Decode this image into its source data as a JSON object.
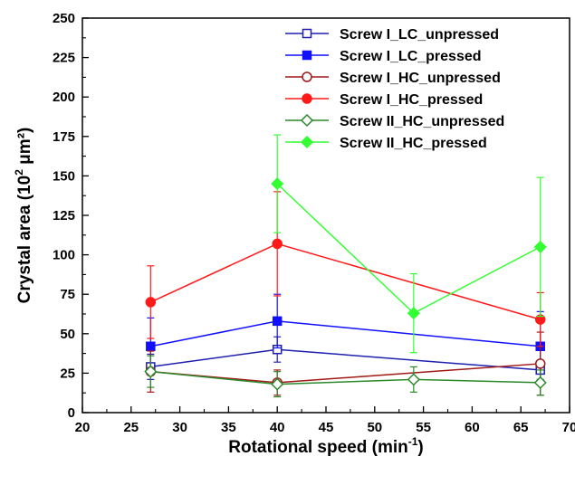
{
  "chart_data": {
    "type": "line",
    "xlabel": "Rotational speed (min",
    "xlabel_sup": "-1",
    "xlabel_close": ")",
    "ylabel": "Crystal area (10",
    "ylabel_sup": "2",
    "ylabel_unit": " μm²)",
    "xlim": [
      20,
      70
    ],
    "ylim": [
      0,
      250
    ],
    "x_ticks": [
      20,
      25,
      30,
      35,
      40,
      45,
      50,
      55,
      60,
      65,
      70
    ],
    "y_ticks": [
      0,
      25,
      50,
      75,
      100,
      125,
      150,
      175,
      200,
      225,
      250
    ],
    "x_tick_labels": [
      "20",
      "25",
      "30",
      "35",
      "40",
      "45",
      "50",
      "55",
      "60",
      "65",
      "70"
    ],
    "y_tick_labels": [
      "0",
      "25",
      "50",
      "75",
      "100",
      "125",
      "150",
      "175",
      "200",
      "225",
      "250"
    ],
    "legend_position": "top-right",
    "series": [
      {
        "name": "Screw I_LC_unpressed",
        "color": "#1f1fb0",
        "marker": "square-open",
        "x": [
          27,
          40,
          67
        ],
        "y": [
          29,
          40,
          27
        ],
        "err": [
          8,
          8,
          6
        ]
      },
      {
        "name": "Screw I_LC_pressed",
        "color": "#1010ff",
        "marker": "square-filled",
        "x": [
          27,
          40,
          67
        ],
        "y": [
          42,
          58,
          42
        ],
        "err": [
          18,
          17,
          22
        ]
      },
      {
        "name": "Screw I_HC_unpressed",
        "color": "#a01818",
        "marker": "circle-open",
        "x": [
          27,
          40,
          67
        ],
        "y": [
          26,
          19,
          31
        ],
        "err": [
          13,
          8,
          20
        ]
      },
      {
        "name": "Screw I_HC_pressed",
        "color": "#ff1a1a",
        "marker": "circle-filled",
        "x": [
          27,
          40,
          67
        ],
        "y": [
          70,
          107,
          59
        ],
        "err": [
          23,
          33,
          17
        ]
      },
      {
        "name": "Screw II_HC_unpressed",
        "color": "#2a8a2a",
        "marker": "diamond-open",
        "x": [
          27,
          40,
          54,
          67
        ],
        "y": [
          26,
          18,
          21,
          19
        ],
        "err": [
          10,
          8,
          8,
          8
        ]
      },
      {
        "name": "Screw II_HC_pressed",
        "color": "#33ff33",
        "marker": "diamond-filled",
        "x": [
          40,
          54,
          67
        ],
        "y": [
          145,
          63,
          105
        ],
        "err": [
          31,
          25,
          44
        ]
      }
    ]
  }
}
